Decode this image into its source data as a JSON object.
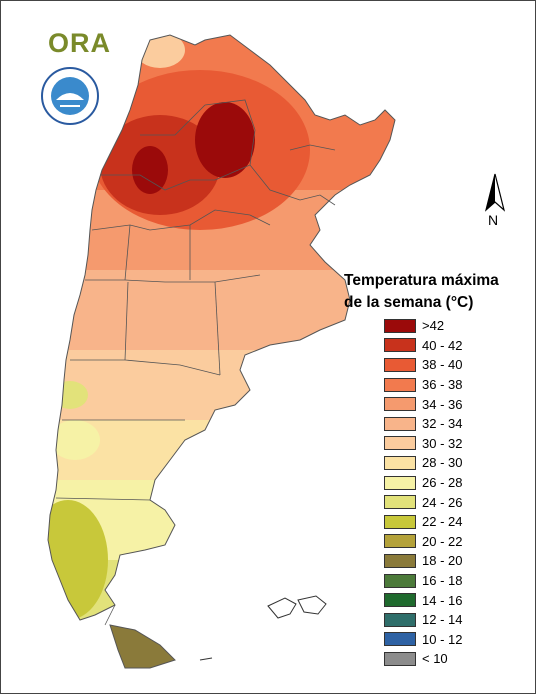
{
  "brand": {
    "logo_text": "ORA",
    "logo_color": "#7a8a2a",
    "seal_icon": "smn-argentina-seal-icon"
  },
  "compass": {
    "north_label": "N",
    "icon": "north-arrow-icon"
  },
  "legend": {
    "title_line1": "Temperatura máxima",
    "title_line2": "de la semana (°C)",
    "items": [
      {
        "label": ">42",
        "color": "#9b0a0a"
      },
      {
        "label": "40 - 42",
        "color": "#c8321c"
      },
      {
        "label": "38 - 40",
        "color": "#e85a34"
      },
      {
        "label": "36 - 38",
        "color": "#f27a4e"
      },
      {
        "label": "34 - 36",
        "color": "#f59a6e"
      },
      {
        "label": "32 - 34",
        "color": "#f8b48a"
      },
      {
        "label": "30 - 32",
        "color": "#fbcc9e"
      },
      {
        "label": "28 - 30",
        "color": "#fbe2a4"
      },
      {
        "label": "26 - 28",
        "color": "#f6f2a6"
      },
      {
        "label": "24 - 26",
        "color": "#e2e27a"
      },
      {
        "label": "22 - 24",
        "color": "#c8c83a"
      },
      {
        "label": "20 - 22",
        "color": "#b4a23a"
      },
      {
        "label": "18 - 20",
        "color": "#8a7a3a"
      },
      {
        "label": "16 - 18",
        "color": "#4c7a3a"
      },
      {
        "label": "14 - 16",
        "color": "#1f6a2e"
      },
      {
        "label": "12 - 14",
        "color": "#2f6e6a"
      },
      {
        "label": "10 - 12",
        "color": "#2e62a4"
      },
      {
        "label": "< 10",
        "color": "#8c8c8c"
      }
    ]
  }
}
